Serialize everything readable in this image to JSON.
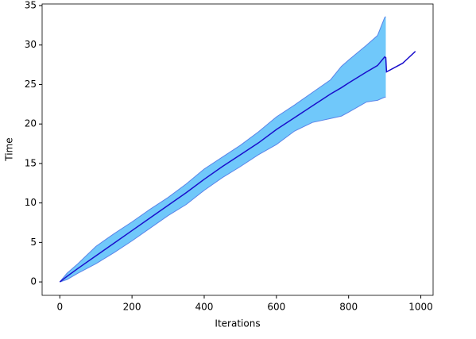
{
  "chart_data": {
    "type": "line",
    "x_label": "Iterations",
    "y_label": "Time",
    "x": [
      0,
      20,
      50,
      100,
      150,
      200,
      250,
      300,
      350,
      400,
      450,
      500,
      550,
      600,
      650,
      700,
      750,
      780,
      800,
      850,
      880,
      900,
      903,
      905,
      950,
      985
    ],
    "series": [
      {
        "color": "#1a0fcc",
        "values": [
          0,
          0.7,
          1.7,
          3.3,
          4.9,
          6.5,
          8.1,
          9.7,
          11.3,
          13,
          14.6,
          16.1,
          17.6,
          19.3,
          20.8,
          22.3,
          23.8,
          24.6,
          25.2,
          26.6,
          27.4,
          28.5,
          28.4,
          26.6,
          27.7,
          29.2
        ]
      },
      {
        "color": "#5b84e8",
        "values": [
          0,
          1.1,
          2.3,
          4.5,
          6.1,
          7.6,
          9.2,
          10.7,
          12.4,
          14.3,
          15.8,
          17.3,
          19,
          20.9,
          22.4,
          24,
          25.6,
          27.3,
          28.1,
          30,
          31.2,
          33.5,
          33.6,
          null,
          null,
          null
        ]
      },
      {
        "color": "#5b84e8",
        "values": [
          0,
          0.3,
          1.1,
          2.3,
          3.7,
          5.2,
          6.8,
          8.4,
          9.8,
          11.6,
          13.2,
          14.6,
          16.1,
          17.4,
          19.1,
          20.2,
          20.7,
          21,
          21.5,
          22.8,
          23,
          23.4,
          23.4,
          null,
          null,
          null
        ]
      }
    ],
    "band_color": "#70c8fa",
    "xlim": [
      -49,
      1034
    ],
    "ylim": [
      -1.7,
      35.2
    ],
    "xticks": [
      0,
      200,
      400,
      600,
      800,
      1000
    ],
    "yticks": [
      0,
      5,
      10,
      15,
      20,
      25,
      30,
      35
    ]
  }
}
